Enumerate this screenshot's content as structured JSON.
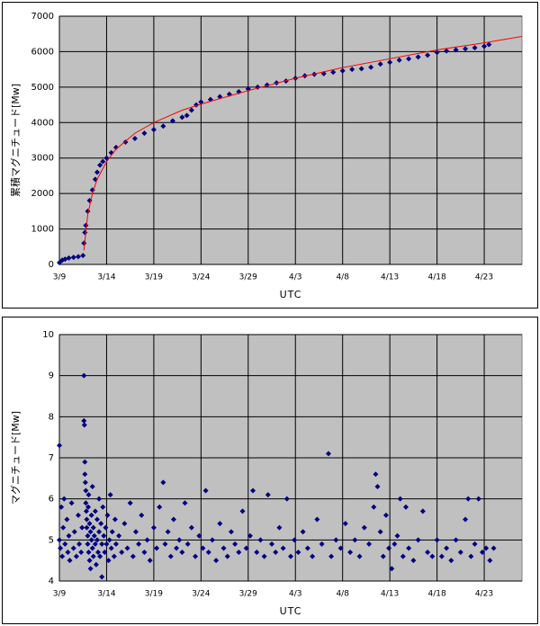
{
  "chart_data": [
    {
      "type": "scatter",
      "ylabel": "累積マグニチュード[Mw]",
      "xlabel": "UTC",
      "xlim": [
        0,
        49
      ],
      "ylim": [
        0,
        7000
      ],
      "grid": true,
      "xticks": [
        {
          "value": 0,
          "label": "3/9"
        },
        {
          "value": 5,
          "label": "3/14"
        },
        {
          "value": 10,
          "label": "3/19"
        },
        {
          "value": 15,
          "label": "3/24"
        },
        {
          "value": 20,
          "label": "3/29"
        },
        {
          "value": 25,
          "label": "4/3"
        },
        {
          "value": 30,
          "label": "4/8"
        },
        {
          "value": 35,
          "label": "4/13"
        },
        {
          "value": 40,
          "label": "4/18"
        },
        {
          "value": 45,
          "label": "4/23"
        }
      ],
      "yticks": [
        0,
        1000,
        2000,
        3000,
        4000,
        5000,
        6000,
        7000
      ],
      "series": [
        {
          "style": "markers",
          "color": "#000080",
          "x": [
            0,
            0.3,
            0.6,
            1,
            1.5,
            2,
            2.5,
            2.6,
            2.7,
            2.8,
            3,
            3.2,
            3.5,
            3.8,
            4,
            4.3,
            4.6,
            5,
            5.5,
            6,
            7,
            8,
            9,
            10,
            11,
            12,
            13,
            13.5,
            14,
            14.5,
            15,
            16,
            17,
            18,
            19,
            20,
            21,
            22,
            23,
            24,
            25,
            26,
            27,
            28,
            29,
            30,
            31,
            32,
            33,
            34,
            35,
            36,
            37,
            38,
            39,
            40,
            41,
            42,
            43,
            44,
            45,
            45.5
          ],
          "values": [
            50,
            120,
            150,
            180,
            200,
            220,
            250,
            600,
            900,
            1100,
            1500,
            1800,
            2100,
            2400,
            2600,
            2800,
            2900,
            3000,
            3150,
            3300,
            3450,
            3550,
            3700,
            3800,
            3900,
            4050,
            4150,
            4200,
            4350,
            4500,
            4580,
            4650,
            4730,
            4800,
            4870,
            4950,
            5000,
            5060,
            5120,
            5170,
            5250,
            5320,
            5360,
            5380,
            5420,
            5460,
            5500,
            5520,
            5560,
            5650,
            5700,
            5760,
            5800,
            5850,
            5900,
            5980,
            6020,
            6050,
            6080,
            6110,
            6150,
            6200
          ]
        },
        {
          "style": "line",
          "color": "#ff0000",
          "x": [
            2.6,
            3,
            3.5,
            4,
            5,
            6,
            8,
            10,
            13,
            16,
            20,
            25,
            30,
            35,
            40,
            45,
            49
          ],
          "values": [
            400,
            1400,
            2000,
            2400,
            2900,
            3250,
            3700,
            4000,
            4350,
            4600,
            4900,
            5250,
            5550,
            5800,
            6050,
            6250,
            6430
          ]
        }
      ]
    },
    {
      "type": "scatter",
      "ylabel": "マグニチュード[Mw]",
      "xlabel": "UTC",
      "xlim": [
        0,
        49
      ],
      "ylim": [
        4,
        10
      ],
      "grid": true,
      "xticks": [
        {
          "value": 0,
          "label": "3/9"
        },
        {
          "value": 5,
          "label": "3/14"
        },
        {
          "value": 10,
          "label": "3/19"
        },
        {
          "value": 15,
          "label": "3/24"
        },
        {
          "value": 20,
          "label": "3/29"
        },
        {
          "value": 25,
          "label": "4/3"
        },
        {
          "value": 30,
          "label": "4/8"
        },
        {
          "value": 35,
          "label": "4/13"
        },
        {
          "value": 40,
          "label": "4/18"
        },
        {
          "value": 45,
          "label": "4/23"
        }
      ],
      "yticks": [
        4,
        5,
        6,
        7,
        8,
        9,
        10
      ],
      "series": [
        {
          "style": "markers",
          "color": "#000080",
          "x": [
            0,
            0,
            0.1,
            0.2,
            0.3,
            0.4,
            0.5,
            0.6,
            0.8,
            0.9,
            1.0,
            1.1,
            1.3,
            1.5,
            1.6,
            1.8,
            2.0,
            2.1,
            2.3,
            2.4,
            2.6,
            2.6,
            2.65,
            2.7,
            2.7,
            2.75,
            2.8,
            2.8,
            2.85,
            2.9,
            2.9,
            3.0,
            3.0,
            3.05,
            3.1,
            3.1,
            3.2,
            3.2,
            3.3,
            3.3,
            3.4,
            3.4,
            3.5,
            3.5,
            3.6,
            3.6,
            3.7,
            3.8,
            3.8,
            3.9,
            4.0,
            4.0,
            4.1,
            4.2,
            4.2,
            4.3,
            4.4,
            4.5,
            4.5,
            4.6,
            4.7,
            4.8,
            4.9,
            5.0,
            5.1,
            5.2,
            5.3,
            5.4,
            5.5,
            5.6,
            5.8,
            5.9,
            6.0,
            6.3,
            6.6,
            6.9,
            7.2,
            7.5,
            7.8,
            8.1,
            8.4,
            8.7,
            9.0,
            9.3,
            9.6,
            10.0,
            10.3,
            10.6,
            11.0,
            11.2,
            11.5,
            11.8,
            12.1,
            12.4,
            12.7,
            13.0,
            13.3,
            13.6,
            14.0,
            14.4,
            14.8,
            15.2,
            15.5,
            15.8,
            16.2,
            16.6,
            17.0,
            17.4,
            17.8,
            18.2,
            18.6,
            19.0,
            19.4,
            19.8,
            20.2,
            20.5,
            20.9,
            21.3,
            21.7,
            22.1,
            22.5,
            22.9,
            23.3,
            23.7,
            24.1,
            24.5,
            24.9,
            25.3,
            25.8,
            26.3,
            26.8,
            27.3,
            27.8,
            28.5,
            28.8,
            29.3,
            29.8,
            30.3,
            30.8,
            31.3,
            31.8,
            32.3,
            32.8,
            33.3,
            33.5,
            33.7,
            34.0,
            34.3,
            34.6,
            34.9,
            35.2,
            35.5,
            35.8,
            36.1,
            36.4,
            36.7,
            37.0,
            37.5,
            38.0,
            38.5,
            39.0,
            39.5,
            40.0,
            40.5,
            41.0,
            41.5,
            42.0,
            42.5,
            43.0,
            43.3,
            43.6,
            44.0,
            44.4,
            44.8,
            45.2,
            45.6,
            46.0
          ],
          "values": [
            7.3,
            5.0,
            4.8,
            5.8,
            4.6,
            5.3,
            6.0,
            4.9,
            5.5,
            4.7,
            5.1,
            4.5,
            5.9,
            4.8,
            5.2,
            4.6,
            5.6,
            4.9,
            4.7,
            5.3,
            9.0,
            7.9,
            7.8,
            6.9,
            6.6,
            6.4,
            6.2,
            5.9,
            5.7,
            5.5,
            5.3,
            5.1,
            4.9,
            5.8,
            4.7,
            6.1,
            5.4,
            4.5,
            5.2,
            4.3,
            5.0,
            5.6,
            4.8,
            6.3,
            5.3,
            4.6,
            5.1,
            4.9,
            5.7,
            4.4,
            5.0,
            5.5,
            4.7,
            6.0,
            5.2,
            4.6,
            5.4,
            4.9,
            4.1,
            5.8,
            5.1,
            4.7,
            5.3,
            4.9,
            5.6,
            4.5,
            5.0,
            6.1,
            4.8,
            5.2,
            4.6,
            5.5,
            4.9,
            5.1,
            4.7,
            5.4,
            4.8,
            5.9,
            4.6,
            5.2,
            4.9,
            5.6,
            4.7,
            5.0,
            4.5,
            5.3,
            4.8,
            5.8,
            6.4,
            4.9,
            5.2,
            4.6,
            5.5,
            4.8,
            5.0,
            4.7,
            5.9,
            4.9,
            5.3,
            4.6,
            5.1,
            4.8,
            6.2,
            4.7,
            5.0,
            4.5,
            5.4,
            4.8,
            4.6,
            5.2,
            4.9,
            4.7,
            5.7,
            4.8,
            5.1,
            6.2,
            4.7,
            5.0,
            4.6,
            6.1,
            4.9,
            4.7,
            5.3,
            4.8,
            6.0,
            4.6,
            5.0,
            4.7,
            5.2,
            4.8,
            4.6,
            5.5,
            4.9,
            7.1,
            4.6,
            5.0,
            4.8,
            5.4,
            4.7,
            5.0,
            4.6,
            5.3,
            4.9,
            5.8,
            6.6,
            6.3,
            5.2,
            4.6,
            5.6,
            4.8,
            4.3,
            4.9,
            5.1,
            6.0,
            4.6,
            5.8,
            4.8,
            4.5,
            5.0,
            5.7,
            4.7,
            4.6,
            5.0,
            4.6,
            4.8,
            4.5,
            5.0,
            4.7,
            5.5,
            6.0,
            4.6,
            4.9,
            6.0,
            4.7,
            4.8,
            4.5,
            4.8
          ]
        }
      ]
    }
  ]
}
